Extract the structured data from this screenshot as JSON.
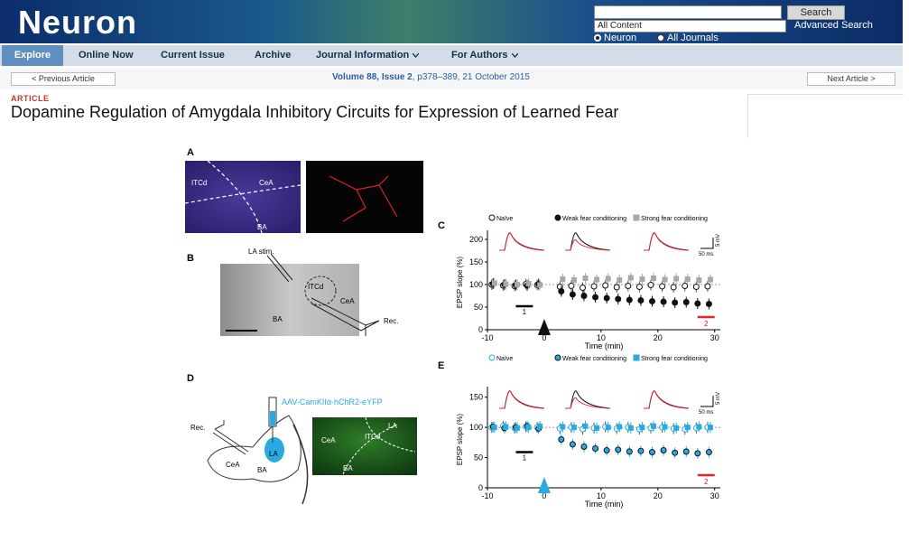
{
  "header": {
    "logo": "Neuron",
    "search_button": "Search",
    "search_scope": "All Content",
    "advanced_search": "Advanced Search",
    "radio_options": [
      "Neuron",
      "All Journals"
    ]
  },
  "nav": [
    "Explore",
    "Online Now",
    "Current Issue",
    "Archive",
    "Journal Information",
    "For Authors"
  ],
  "article_nav": {
    "previous": "< Previous Article",
    "issue_link": "Volume 88, Issue 2",
    "details": ", p378–389, 21 October 2015",
    "next": "Next Article >"
  },
  "article": {
    "type": "ARTICLE",
    "title": "Dopamine Regulation of Amygdala Inhibitory Circuits for Expression of Learned Fear"
  },
  "figure": {
    "panel_A": {
      "label": "A",
      "regions": [
        "ITCd",
        "CeA",
        "BA"
      ]
    },
    "panel_B": {
      "label": "B",
      "stim": "LA stim.",
      "regions": [
        "ITCd",
        "CeA",
        "BA"
      ],
      "rec": "Rec."
    },
    "panel_D": {
      "label": "D",
      "virus": "AAV-CamKIIα-hChR2-eYFP",
      "rec": "Rec.",
      "regions": [
        "LA",
        "CeA",
        "BA"
      ],
      "image_regions": [
        "LA",
        "CeA",
        "ITCd",
        "BA"
      ]
    },
    "charts": [
      {
        "label": "C",
        "type": "scatter",
        "y_label": "EPSP slope (%)",
        "x_label": "Time (min)",
        "scale_mv": "5 mV",
        "scale_ms": "50 ms",
        "baseline_label": "1",
        "post_label": "2",
        "xlim": [
          -10,
          31
        ],
        "ylim": [
          0,
          210
        ],
        "xticks": [
          -10,
          0,
          10,
          20,
          30
        ],
        "yticks": [
          0,
          50,
          100,
          150,
          200
        ],
        "x": [
          -9,
          -7,
          -5,
          -3,
          -1,
          3,
          5,
          7,
          9,
          11,
          13,
          15,
          17,
          19,
          21,
          23,
          25,
          27,
          29
        ],
        "series": [
          {
            "name": "Naïve",
            "color": "#ffffff",
            "values": [
              100,
              98,
              97,
              101,
              99,
              95,
              97,
              93,
              96,
              98,
              94,
              97,
              95,
              99,
              96,
              94,
              97,
              95,
              96
            ]
          },
          {
            "name": "Weak fear conditioning",
            "color": "#111111",
            "values": [
              102,
              100,
              99,
              98,
              101,
              85,
              78,
              75,
              72,
              70,
              68,
              66,
              65,
              63,
              62,
              60,
              61,
              58,
              57
            ]
          },
          {
            "name": "Strong fear conditioning",
            "color": "#a8a8a8",
            "values": [
              103,
              101,
              100,
              102,
              99,
              112,
              110,
              114,
              111,
              113,
              110,
              115,
              112,
              114,
              111,
              113,
              112,
              110,
              111
            ]
          }
        ]
      },
      {
        "label": "E",
        "type": "scatter",
        "y_label": "EPSP slope (%)",
        "x_label": "Time (min)",
        "scale_mv": "5 mV",
        "scale_ms": "50 ms",
        "baseline_label": "1",
        "post_label": "2",
        "xlim": [
          -10,
          31
        ],
        "ylim": [
          0,
          160
        ],
        "xticks": [
          -10,
          0,
          10,
          20,
          30
        ],
        "yticks": [
          0,
          50,
          100,
          150
        ],
        "x": [
          -9,
          -7,
          -5,
          -3,
          -1,
          3,
          5,
          7,
          9,
          11,
          13,
          15,
          17,
          19,
          21,
          23,
          25,
          27,
          29
        ],
        "series": [
          {
            "name": "Naïve",
            "color": "#ffffff",
            "values": [
              100,
              102,
              99,
              101,
              100,
              98,
              100,
              97,
              99,
              101,
              98,
              100,
              97,
              99,
              100,
              98,
              97,
              99,
              100
            ]
          },
          {
            "name": "Weak fear conditioning",
            "color": "#29abe2",
            "values": [
              101,
              99,
              100,
              102,
              98,
              80,
              72,
              68,
              65,
              62,
              63,
              60,
              61,
              59,
              62,
              58,
              60,
              57,
              59
            ]
          },
          {
            "name": "Strong fear conditioning",
            "color": "#29abe2",
            "values": [
              100,
              101,
              99,
              100,
              102,
              101,
              100,
              102,
              99,
              100,
              101,
              99,
              100,
              102,
              101,
              99,
              100,
              101,
              100
            ]
          }
        ]
      }
    ]
  }
}
